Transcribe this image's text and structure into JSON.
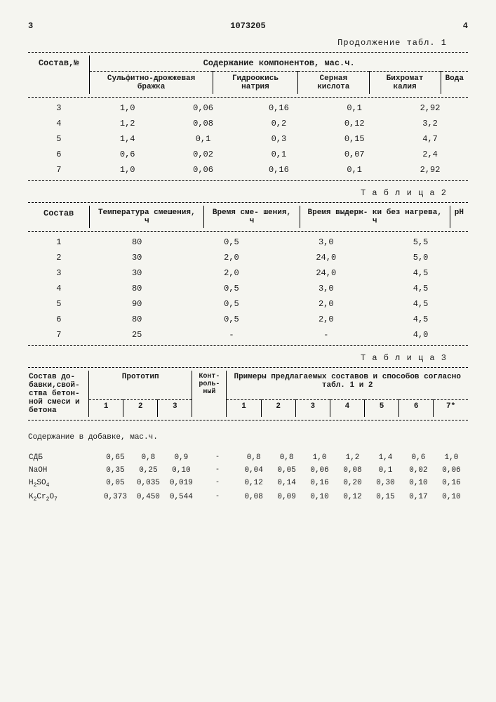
{
  "page_left_num": "3",
  "doc_id": "1073205",
  "page_right_num": "4",
  "table1": {
    "caption": "Продолжение табл. 1",
    "col1_header": "Состав,№",
    "super_header": "Содержание компонентов, мас.ч.",
    "cols": [
      "Сульфитно-дрожжевая бражка",
      "Гидроокись натрия",
      "Серная кислота",
      "Бихромат калия",
      "Вода"
    ],
    "rows": [
      [
        "3",
        "1,0",
        "0,06",
        "0,16",
        "0,1",
        "2,92"
      ],
      [
        "4",
        "1,2",
        "0,08",
        "0,2",
        "0,12",
        "3,2"
      ],
      [
        "5",
        "1,4",
        "0,1",
        "0,3",
        "0,15",
        "4,7"
      ],
      [
        "6",
        "0,6",
        "0,02",
        "0,1",
        "0,07",
        "2,4"
      ],
      [
        "7",
        "1,0",
        "0,06",
        "0,16",
        "0,1",
        "2,92"
      ]
    ]
  },
  "table2": {
    "caption": "Т а б л и ц а  2",
    "cols": [
      "Состав",
      "Температура смешения, ч",
      "Время сме- шения, ч",
      "Время выдерж- ки без нагрева, ч",
      "pH"
    ],
    "rows": [
      [
        "1",
        "80",
        "0,5",
        "3,0",
        "5,5"
      ],
      [
        "2",
        "30",
        "2,0",
        "24,0",
        "5,0"
      ],
      [
        "3",
        "30",
        "2,0",
        "24,0",
        "4,5"
      ],
      [
        "4",
        "80",
        "0,5",
        "3,0",
        "4,5"
      ],
      [
        "5",
        "90",
        "0,5",
        "2,0",
        "4,5"
      ],
      [
        "6",
        "80",
        "0,5",
        "2,0",
        "4,5"
      ],
      [
        "7",
        "25",
        "-",
        "-",
        "4,0"
      ]
    ]
  },
  "table3": {
    "caption": "Т а б л и ц а  3",
    "header1": "Состав до- бавки,свой- ства бетон- ной смеси и бетона",
    "prototype_label": "Прототип",
    "control_label": "Конт- роль- ный",
    "examples_label": "Примеры предлагаемых составов и способов согласно табл. 1 и 2",
    "proto_nums": [
      "1",
      "2",
      "3"
    ],
    "example_nums": [
      "1",
      "2",
      "3",
      "4",
      "5",
      "6",
      "7*"
    ],
    "section_label": "Содержание в добавке, мас.ч.",
    "row_labels": {
      "sdb": "СДБ",
      "naoh": "NaOH",
      "h2so4": "H₂SO₄",
      "k2cr2o7": "K₂Cr₂O₇"
    },
    "rows": [
      [
        "0,65",
        "0,8",
        "0,9",
        "-",
        "0,8",
        "0,8",
        "1,0",
        "1,2",
        "1,4",
        "0,6",
        "1,0"
      ],
      [
        "0,35",
        "0,25",
        "0,10",
        "-",
        "0,04",
        "0,05",
        "0,06",
        "0,08",
        "0,1",
        "0,02",
        "0,06"
      ],
      [
        "0,05",
        "0,035",
        "0,019",
        "-",
        "0,12",
        "0,14",
        "0,16",
        "0,20",
        "0,30",
        "0,10",
        "0,16"
      ],
      [
        "0,373",
        "0,450",
        "0,544",
        "-",
        "0,08",
        "0,09",
        "0,10",
        "0,12",
        "0,15",
        "0,17",
        "0,10"
      ]
    ]
  }
}
